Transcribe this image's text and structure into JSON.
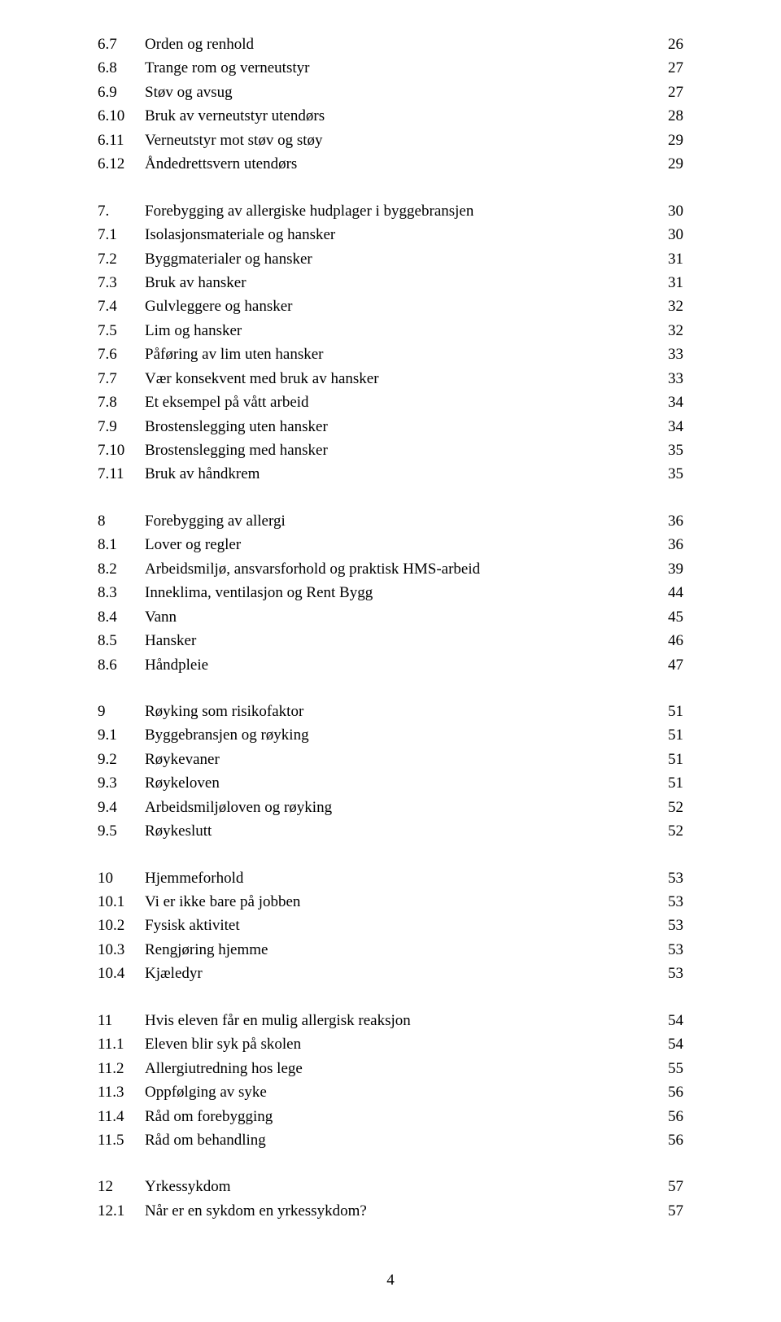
{
  "font_family": "Times New Roman",
  "base_fontsize": 19,
  "text_color": "#000000",
  "background_color": "#ffffff",
  "page_number": "4",
  "sections": [
    {
      "head": false,
      "first": true,
      "rows": [
        {
          "num": "6.7",
          "title": "Orden og renhold",
          "page": "26"
        },
        {
          "num": "6.8",
          "title": "Trange rom og verneutstyr",
          "page": "27"
        },
        {
          "num": "6.9",
          "title": "Støv og avsug",
          "page": "27"
        },
        {
          "num": "6.10",
          "title": "Bruk av verneutstyr utendørs",
          "page": "28"
        },
        {
          "num": "6.11",
          "title": "Verneutstyr mot støv og støy",
          "page": "29"
        },
        {
          "num": "6.12",
          "title": "Åndedrettsvern utendørs",
          "page": "29"
        }
      ]
    },
    {
      "head": true,
      "rows": [
        {
          "num": "7.",
          "title": "Forebygging av allergiske hudplager i byggebransjen",
          "page": "30"
        },
        {
          "num": "7.1",
          "title": "Isolasjonsmateriale og hansker",
          "page": "30"
        },
        {
          "num": "7.2",
          "title": "Byggmaterialer og hansker",
          "page": "31"
        },
        {
          "num": "7.3",
          "title": "Bruk av hansker",
          "page": "31"
        },
        {
          "num": "7.4",
          "title": "Gulvleggere og hansker",
          "page": "32"
        },
        {
          "num": "7.5",
          "title": "Lim og hansker",
          "page": "32"
        },
        {
          "num": "7.6",
          "title": "Påføring av lim uten hansker",
          "page": "33"
        },
        {
          "num": "7.7",
          "title": "Vær konsekvent med bruk av hansker",
          "page": "33"
        },
        {
          "num": "7.8",
          "title": "Et eksempel på vått arbeid",
          "page": "34"
        },
        {
          "num": "7.9",
          "title": "Brostenslegging uten hansker",
          "page": "34"
        },
        {
          "num": "7.10",
          "title": "Brostenslegging med hansker",
          "page": "35"
        },
        {
          "num": "7.11",
          "title": "Bruk av håndkrem",
          "page": "35"
        }
      ]
    },
    {
      "head": true,
      "rows": [
        {
          "num": "8",
          "title": "Forebygging av allergi",
          "page": "36"
        },
        {
          "num": "8.1",
          "title": "Lover og regler",
          "page": "36"
        },
        {
          "num": "8.2",
          "title": "Arbeidsmiljø, ansvarsforhold og praktisk HMS-arbeid",
          "page": "39"
        },
        {
          "num": "8.3",
          "title": "Inneklima, ventilasjon og Rent Bygg",
          "page": "44"
        },
        {
          "num": "8.4",
          "title": "Vann",
          "page": "45"
        },
        {
          "num": "8.5",
          "title": "Hansker",
          "page": "46"
        },
        {
          "num": "8.6",
          "title": "Håndpleie",
          "page": "47"
        }
      ]
    },
    {
      "head": true,
      "rows": [
        {
          "num": "9",
          "title": "Røyking som risikofaktor",
          "page": "51"
        },
        {
          "num": "9.1",
          "title": "Byggebransjen og røyking",
          "page": "51"
        },
        {
          "num": "9.2",
          "title": "Røykevaner",
          "page": "51"
        },
        {
          "num": "9.3",
          "title": "Røykeloven",
          "page": "51"
        },
        {
          "num": "9.4",
          "title": "Arbeidsmiljøloven og røyking",
          "page": "52"
        },
        {
          "num": "9.5",
          "title": "Røykeslutt",
          "page": "52"
        }
      ]
    },
    {
      "head": true,
      "rows": [
        {
          "num": "10",
          "title": "Hjemmeforhold",
          "page": "53"
        },
        {
          "num": "10.1",
          "title": "Vi er ikke bare på jobben",
          "page": "53"
        },
        {
          "num": "10.2",
          "title": "Fysisk aktivitet",
          "page": "53"
        },
        {
          "num": "10.3",
          "title": "Rengjøring hjemme",
          "page": "53"
        },
        {
          "num": "10.4",
          "title": "Kjæledyr",
          "page": "53"
        }
      ]
    },
    {
      "head": true,
      "rows": [
        {
          "num": "11",
          "title": "Hvis eleven får en mulig allergisk reaksjon",
          "page": "54"
        },
        {
          "num": "11.1",
          "title": "Eleven blir syk på skolen",
          "page": "54"
        },
        {
          "num": "11.2",
          "title": "Allergiutredning hos lege",
          "page": "55"
        },
        {
          "num": "11.3",
          "title": "Oppfølging av syke",
          "page": "56"
        },
        {
          "num": "11.4",
          "title": "Råd om forebygging",
          "page": "56"
        },
        {
          "num": "11.5",
          "title": "Råd om behandling",
          "page": "56"
        }
      ]
    },
    {
      "head": true,
      "rows": [
        {
          "num": "12",
          "title": "Yrkessykdom",
          "page": "57"
        },
        {
          "num": "12.1",
          "title": "Når er en sykdom en yrkessykdom?",
          "page": "57"
        }
      ]
    }
  ]
}
